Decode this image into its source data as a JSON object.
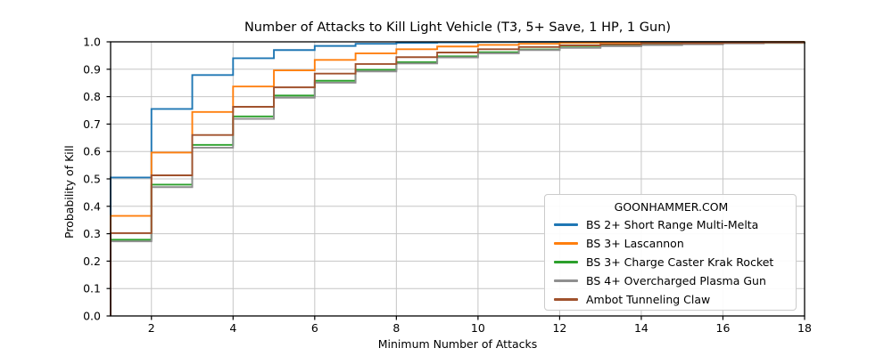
{
  "chart": {
    "title": "Number of Attacks to Kill Light Vehicle (T3, 5+ Save, 1 HP, 1 Gun)",
    "xlabel": "Minimum Number of Attacks",
    "ylabel": "Probability of Kill"
  },
  "chart_data": {
    "type": "line",
    "subtype": "step-cdf",
    "step": "pre",
    "title": "Number of Attacks to Kill Light Vehicle (T3, 5+ Save, 1 HP, 1 Gun)",
    "xlabel": "Minimum Number of Attacks",
    "ylabel": "Probability of Kill",
    "xlim": [
      1,
      18
    ],
    "ylim": [
      0.0,
      1.0
    ],
    "grid": true,
    "x": [
      1,
      2,
      3,
      4,
      5,
      6,
      7,
      8,
      9,
      10,
      11,
      12,
      13,
      14,
      15,
      16,
      17,
      18
    ],
    "xticks": [
      2,
      4,
      6,
      8,
      10,
      12,
      14,
      16,
      18
    ],
    "xtick_labels": [
      "2",
      "4",
      "6",
      "8",
      "10",
      "12",
      "14",
      "16",
      "18"
    ],
    "yticks": [
      0.0,
      0.1,
      0.2,
      0.3,
      0.4,
      0.5,
      0.6,
      0.7,
      0.8,
      0.9,
      1.0
    ],
    "ytick_labels": [
      "0.0",
      "0.1",
      "0.2",
      "0.3",
      "0.4",
      "0.5",
      "0.6",
      "0.7",
      "0.8",
      "0.9",
      "1.0"
    ],
    "legend": {
      "title": "GOONHAMMER.COM",
      "position": "lower right"
    },
    "series": [
      {
        "name": "BS 2+ Short Range Multi-Melta",
        "color": "#1f77b4",
        "values": [
          0.505,
          0.755,
          0.879,
          0.94,
          0.97,
          0.985,
          0.993,
          0.996,
          0.998,
          0.999,
          0.9996,
          0.9998,
          0.9999,
          1.0,
          1.0,
          1.0,
          1.0,
          1.0
        ]
      },
      {
        "name": "BS 3+ Lascannon",
        "color": "#ff7f0e",
        "values": [
          0.365,
          0.596,
          0.744,
          0.837,
          0.896,
          0.934,
          0.958,
          0.973,
          0.983,
          0.989,
          0.993,
          0.996,
          0.997,
          0.998,
          0.999,
          0.9993,
          0.9996,
          0.9997
        ]
      },
      {
        "name": "BS 3+ Charge Caster Krak Rocket",
        "color": "#2ca02c",
        "values": [
          0.278,
          0.479,
          0.624,
          0.728,
          0.804,
          0.858,
          0.898,
          0.926,
          0.947,
          0.962,
          0.972,
          0.98,
          0.986,
          0.99,
          0.992,
          0.995,
          0.996,
          0.997
        ]
      },
      {
        "name": "BS 4+ Overcharged Plasma Gun",
        "color": "#8f8f8f",
        "values": [
          0.272,
          0.47,
          0.614,
          0.719,
          0.796,
          0.851,
          0.892,
          0.921,
          0.943,
          0.958,
          0.97,
          0.978,
          0.984,
          0.988,
          0.991,
          0.994,
          0.996,
          0.997
        ]
      },
      {
        "name": "Ambot Tunneling Claw",
        "color": "#a0522d",
        "values": [
          0.302,
          0.513,
          0.66,
          0.763,
          0.834,
          0.884,
          0.919,
          0.944,
          0.961,
          0.973,
          0.981,
          0.987,
          0.991,
          0.994,
          0.995,
          0.997,
          0.998,
          0.998
        ]
      }
    ]
  },
  "colors": {
    "background": "#ffffff",
    "grid": "#c6c6c6",
    "spine": "#000000",
    "tick_label": "#000000",
    "legend_border": "#cbcbcb"
  }
}
